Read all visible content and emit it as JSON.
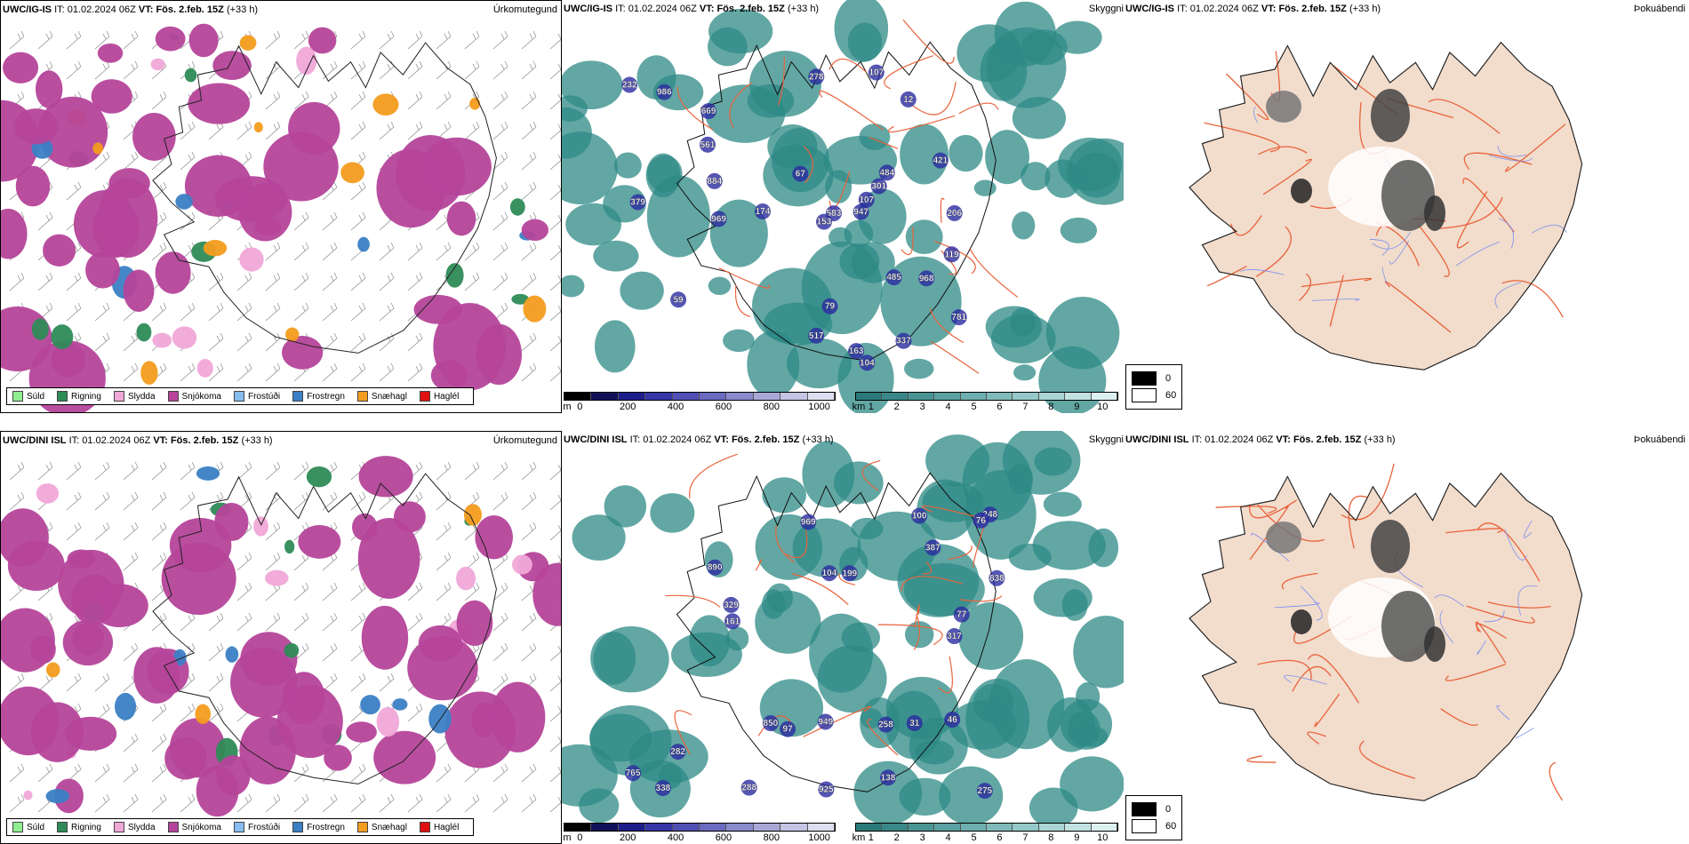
{
  "rows": [
    {
      "precip": {
        "header_model": "UWC/IG-IS",
        "header_it_label": "IT:",
        "header_it": "01.02.2024 06Z",
        "header_vt_label": "VT:",
        "header_vt": "Fös. 2.feb. 15Z",
        "header_lead": "(+33 h)",
        "right_title": "Úrkomutegund"
      },
      "cloud": {
        "header_model": "UWC/IG-IS",
        "header_it_label": "IT:",
        "header_it": "01.02.2024 06Z",
        "header_vt_label": "VT:",
        "header_vt": "Fös. 2.feb. 15Z",
        "header_lead": "(+33 h)",
        "right_title": "Skyggni",
        "labels": [
          "968",
          "781",
          "421",
          "583",
          "301",
          "379",
          "337",
          "232",
          "79",
          "484",
          "669",
          "485",
          "12",
          "104",
          "206",
          "969",
          "163",
          "174",
          "517",
          "67",
          "278",
          "119",
          "153",
          "107",
          "107",
          "59",
          "986",
          "884",
          "947",
          "561"
        ]
      },
      "fog": {
        "header_model": "UWC/IG-IS",
        "header_it_label": "IT:",
        "header_it": "01.02.2024 06Z",
        "header_vt_label": "VT:",
        "header_vt": "Fös. 2.feb. 15Z",
        "header_lead": "(+33 h)",
        "right_title": "Þokuábendi"
      }
    },
    {
      "precip": {
        "header_model": "UWC/DINI ISL",
        "header_it_label": "IT:",
        "header_it": "01.02.2024 06Z",
        "header_vt_label": "VT:",
        "header_vt": "Fös. 2.feb. 15Z",
        "header_lead": "(+33 h)",
        "right_title": "Úrkomutegund"
      },
      "cloud": {
        "header_model": "UWC/DINI ISL",
        "header_it_label": "IT:",
        "header_it": "01.02.2024 06Z",
        "header_vt_label": "VT:",
        "header_vt": "Fös. 2.feb. 15Z",
        "header_lead": "(+33 h)",
        "right_title": "Skyggni",
        "labels": [
          "925",
          "199",
          "765",
          "838",
          "890",
          "338",
          "288",
          "949",
          "329",
          "317",
          "387",
          "77",
          "248",
          "97",
          "161",
          "76",
          "138",
          "31",
          "282",
          "275",
          "258",
          "46",
          "104",
          "850",
          "969",
          "100"
        ]
      },
      "fog": {
        "header_model": "UWC/DINI ISL",
        "header_it_label": "IT:",
        "header_it": "01.02.2024 06Z",
        "header_vt_label": "VT:",
        "header_vt": "Fös. 2.feb. 15Z",
        "header_lead": "(+33 h)",
        "right_title": "Þokuábendi"
      }
    }
  ],
  "precip_legend": [
    {
      "label": "Súld",
      "color": "#90ee90"
    },
    {
      "label": "Rigning",
      "color": "#2e8b57"
    },
    {
      "label": "Slydda",
      "color": "#f0a8d8"
    },
    {
      "label": "Snjókoma",
      "color": "#b5449a"
    },
    {
      "label": "Frostúði",
      "color": "#87bdf0"
    },
    {
      "label": "Frostregn",
      "color": "#3a7fc4"
    },
    {
      "label": "Snæhagl",
      "color": "#f39c1e"
    },
    {
      "label": "Haglél",
      "color": "#e01010"
    }
  ],
  "height_bar": {
    "unit": "m",
    "ticks": [
      "0",
      "200",
      "400",
      "600",
      "800",
      "1000"
    ],
    "colors": [
      "#000000",
      "#12125a",
      "#1e1e8a",
      "#3636a6",
      "#5050b4",
      "#6a6ac0",
      "#8a8acd",
      "#a8a8d8",
      "#c4c4e4",
      "#dedef0"
    ]
  },
  "vis_bar": {
    "unit": "km",
    "ticks": [
      "1",
      "2",
      "3",
      "4",
      "5",
      "6",
      "7",
      "8",
      "9",
      "10"
    ],
    "colors": [
      "#2a7a7a",
      "#3a8787",
      "#4a9494",
      "#5ba1a1",
      "#6daeae",
      "#80bbbb",
      "#95c8c8",
      "#abd5d5",
      "#c2e2e2",
      "#ddf0f0"
    ]
  },
  "fog_legend": [
    {
      "value": "0",
      "color": "#000000"
    },
    {
      "value": "60",
      "color": "#ffffff"
    }
  ],
  "colors": {
    "snow": "#b5449a",
    "rain": "#2e8b57",
    "sleet": "#f0a8d8",
    "frz": "#3a7fc4",
    "hail": "#f39c1e",
    "teal": "#2e8a86",
    "land": "#f2dccc",
    "road": "#e8643c"
  }
}
